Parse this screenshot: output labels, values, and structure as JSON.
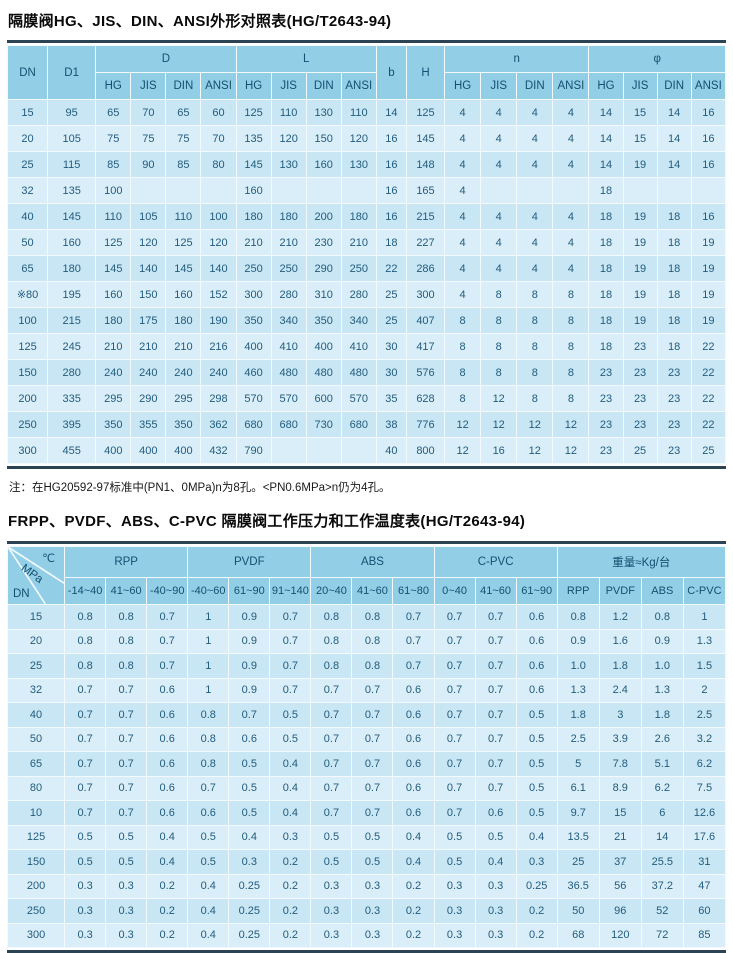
{
  "colors": {
    "header_bg": "#92cfe7",
    "row_odd": "#c8e6f4",
    "row_even": "#d9eef9",
    "cell_text": "#235c7d",
    "dark_border": "#2c4354",
    "grid_line": "#f3fafd"
  },
  "table1": {
    "title": "隔膜阀HG、JIS、DIN、ANSI外形对照表(HG/T2643-94)",
    "header": {
      "dn": "DN",
      "d1": "D1",
      "d": "D",
      "l": "L",
      "b": "b",
      "h": "H",
      "n": "n",
      "phi": "φ",
      "sub": [
        "HG",
        "JIS",
        "DIN",
        "ANSI"
      ]
    },
    "rows": [
      [
        "15",
        "95",
        "65",
        "70",
        "65",
        "60",
        "125",
        "110",
        "130",
        "110",
        "14",
        "125",
        "4",
        "4",
        "4",
        "4",
        "14",
        "15",
        "14",
        "16"
      ],
      [
        "20",
        "105",
        "75",
        "75",
        "75",
        "70",
        "135",
        "120",
        "150",
        "120",
        "16",
        "145",
        "4",
        "4",
        "4",
        "4",
        "14",
        "15",
        "14",
        "16"
      ],
      [
        "25",
        "115",
        "85",
        "90",
        "85",
        "80",
        "145",
        "130",
        "160",
        "130",
        "16",
        "148",
        "4",
        "4",
        "4",
        "4",
        "14",
        "19",
        "14",
        "16"
      ],
      [
        "32",
        "135",
        "100",
        "",
        "",
        "",
        "160",
        "",
        "",
        "",
        "16",
        "165",
        "4",
        "",
        "",
        "",
        "18",
        "",
        "",
        ""
      ],
      [
        "40",
        "145",
        "110",
        "105",
        "110",
        "100",
        "180",
        "180",
        "200",
        "180",
        "16",
        "215",
        "4",
        "4",
        "4",
        "4",
        "18",
        "19",
        "18",
        "16"
      ],
      [
        "50",
        "160",
        "125",
        "120",
        "125",
        "120",
        "210",
        "210",
        "230",
        "210",
        "18",
        "227",
        "4",
        "4",
        "4",
        "4",
        "18",
        "19",
        "18",
        "19"
      ],
      [
        "65",
        "180",
        "145",
        "140",
        "145",
        "140",
        "250",
        "250",
        "290",
        "250",
        "22",
        "286",
        "4",
        "4",
        "4",
        "4",
        "18",
        "19",
        "18",
        "19"
      ],
      [
        "※80",
        "195",
        "160",
        "150",
        "160",
        "152",
        "300",
        "280",
        "310",
        "280",
        "25",
        "300",
        "4",
        "8",
        "8",
        "8",
        "18",
        "19",
        "18",
        "19"
      ],
      [
        "100",
        "215",
        "180",
        "175",
        "180",
        "190",
        "350",
        "340",
        "350",
        "340",
        "25",
        "407",
        "8",
        "8",
        "8",
        "8",
        "18",
        "19",
        "18",
        "19"
      ],
      [
        "125",
        "245",
        "210",
        "210",
        "210",
        "216",
        "400",
        "410",
        "400",
        "410",
        "30",
        "417",
        "8",
        "8",
        "8",
        "8",
        "18",
        "23",
        "18",
        "22"
      ],
      [
        "150",
        "280",
        "240",
        "240",
        "240",
        "240",
        "460",
        "480",
        "480",
        "480",
        "30",
        "576",
        "8",
        "8",
        "8",
        "8",
        "23",
        "23",
        "23",
        "22"
      ],
      [
        "200",
        "335",
        "295",
        "290",
        "295",
        "298",
        "570",
        "570",
        "600",
        "570",
        "35",
        "628",
        "8",
        "12",
        "8",
        "8",
        "23",
        "23",
        "23",
        "22"
      ],
      [
        "250",
        "395",
        "350",
        "355",
        "350",
        "362",
        "680",
        "680",
        "730",
        "680",
        "38",
        "776",
        "12",
        "12",
        "12",
        "12",
        "23",
        "23",
        "23",
        "22"
      ],
      [
        "300",
        "455",
        "400",
        "400",
        "400",
        "432",
        "790",
        "",
        "",
        "",
        "40",
        "800",
        "12",
        "16",
        "12",
        "12",
        "23",
        "25",
        "23",
        "25"
      ]
    ],
    "note": "注：在HG20592-97标准中(PN1、0MPa)n为8孔。<PN0.6MPa>n仍为4孔。"
  },
  "table2": {
    "title": "FRPP、PVDF、ABS、C-PVC 隔膜阀工作压力和工作温度表(HG/T2643-94)",
    "corner": {
      "top": "℃",
      "mid": "MPa",
      "bottom": "DN"
    },
    "groups": [
      {
        "label": "RPP",
        "cols": [
          "-14~40",
          "41~60",
          "-40~90"
        ]
      },
      {
        "label": "PVDF",
        "cols": [
          "-40~60",
          "61~90",
          "91~140"
        ]
      },
      {
        "label": "ABS",
        "cols": [
          "20~40",
          "41~60",
          "61~80"
        ]
      },
      {
        "label": "C-PVC",
        "cols": [
          "0~40",
          "41~60",
          "61~90"
        ]
      },
      {
        "label": "重量≈Kg/台",
        "cols": [
          "RPP",
          "PVDF",
          "ABS",
          "C-PVC"
        ]
      }
    ],
    "rows": [
      [
        "15",
        "0.8",
        "0.8",
        "0.7",
        "1",
        "0.9",
        "0.7",
        "0.8",
        "0.8",
        "0.7",
        "0.7",
        "0.7",
        "0.6",
        "0.8",
        "1.2",
        "0.8",
        "1"
      ],
      [
        "20",
        "0.8",
        "0.8",
        "0.7",
        "1",
        "0.9",
        "0.7",
        "0.8",
        "0.8",
        "0.7",
        "0.7",
        "0.7",
        "0.6",
        "0.9",
        "1.6",
        "0.9",
        "1.3"
      ],
      [
        "25",
        "0.8",
        "0.8",
        "0.7",
        "1",
        "0.9",
        "0.7",
        "0.8",
        "0.8",
        "0.7",
        "0.7",
        "0.7",
        "0.6",
        "1.0",
        "1.8",
        "1.0",
        "1.5"
      ],
      [
        "32",
        "0.7",
        "0.7",
        "0.6",
        "1",
        "0.9",
        "0.7",
        "0.7",
        "0.7",
        "0.6",
        "0.7",
        "0.7",
        "0.6",
        "1.3",
        "2.4",
        "1.3",
        "2"
      ],
      [
        "40",
        "0.7",
        "0.7",
        "0.6",
        "0.8",
        "0.7",
        "0.5",
        "0.7",
        "0.7",
        "0.6",
        "0.7",
        "0.7",
        "0.5",
        "1.8",
        "3",
        "1.8",
        "2.5"
      ],
      [
        "50",
        "0.7",
        "0.7",
        "0.6",
        "0.8",
        "0.6",
        "0.5",
        "0.7",
        "0.7",
        "0.6",
        "0.7",
        "0.7",
        "0.5",
        "2.5",
        "3.9",
        "2.6",
        "3.2"
      ],
      [
        "65",
        "0.7",
        "0.7",
        "0.6",
        "0.8",
        "0.5",
        "0.4",
        "0.7",
        "0.7",
        "0.6",
        "0.7",
        "0.7",
        "0.5",
        "5",
        "7.8",
        "5.1",
        "6.2"
      ],
      [
        "80",
        "0.7",
        "0.7",
        "0.6",
        "0.7",
        "0.5",
        "0.4",
        "0.7",
        "0.7",
        "0.6",
        "0.7",
        "0.7",
        "0.5",
        "6.1",
        "8.9",
        "6.2",
        "7.5"
      ],
      [
        "10",
        "0.7",
        "0.7",
        "0.6",
        "0.6",
        "0.5",
        "0.4",
        "0.7",
        "0.7",
        "0.6",
        "0.7",
        "0.6",
        "0.5",
        "9.7",
        "15",
        "6",
        "12.6"
      ],
      [
        "125",
        "0.5",
        "0.5",
        "0.4",
        "0.5",
        "0.4",
        "0.3",
        "0.5",
        "0.5",
        "0.4",
        "0.5",
        "0.5",
        "0.4",
        "13.5",
        "21",
        "14",
        "17.6"
      ],
      [
        "150",
        "0.5",
        "0.5",
        "0.4",
        "0.5",
        "0.3",
        "0.2",
        "0.5",
        "0.5",
        "0.4",
        "0.5",
        "0.4",
        "0.3",
        "25",
        "37",
        "25.5",
        "31"
      ],
      [
        "200",
        "0.3",
        "0.3",
        "0.2",
        "0.4",
        "0.25",
        "0.2",
        "0.3",
        "0.3",
        "0.2",
        "0.3",
        "0.3",
        "0.25",
        "36.5",
        "56",
        "37.2",
        "47"
      ],
      [
        "250",
        "0.3",
        "0.3",
        "0.2",
        "0.4",
        "0.25",
        "0.2",
        "0.3",
        "0.3",
        "0.2",
        "0.3",
        "0.3",
        "0.2",
        "50",
        "96",
        "52",
        "60"
      ],
      [
        "300",
        "0.3",
        "0.3",
        "0.2",
        "0.4",
        "0.25",
        "0.2",
        "0.3",
        "0.3",
        "0.2",
        "0.3",
        "0.3",
        "0.2",
        "68",
        "120",
        "72",
        "85"
      ]
    ]
  }
}
